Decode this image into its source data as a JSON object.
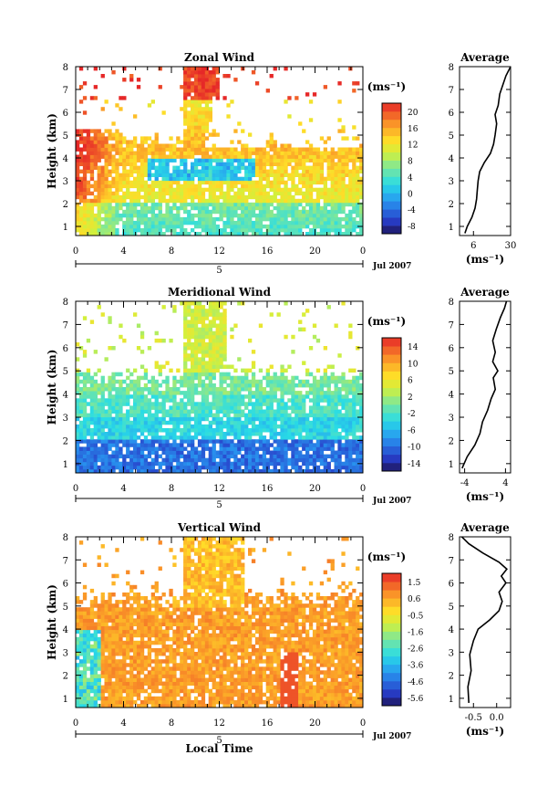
{
  "chart_data": [
    {
      "type": "heatmap",
      "title": "Zonal Wind",
      "ylabel": "Height (km)",
      "xticks": [
        "0",
        "4",
        "8",
        "12",
        "16",
        "20",
        "0"
      ],
      "date_label": "5",
      "date_suffix": "Jul 2007",
      "xlim": [
        0,
        24
      ],
      "ylim": [
        0.6,
        8
      ],
      "yticks": [
        "1",
        "2",
        "3",
        "4",
        "5",
        "6",
        "7",
        "8"
      ],
      "colorbar": {
        "unit": "(ms⁻¹)",
        "ticks": [
          "20",
          "16",
          "12",
          "8",
          "4",
          "0",
          "-4",
          "-8"
        ],
        "range": [
          -10,
          22
        ]
      },
      "average": {
        "title": "Average",
        "xlabel": "(ms⁻¹)",
        "xticks": [
          "6",
          "30"
        ],
        "xlim": [
          -3,
          30
        ],
        "profile": [
          [
            0.5,
            0.7
          ],
          [
            2,
            1.0
          ],
          [
            5,
            1.4
          ],
          [
            7,
            1.8
          ],
          [
            8,
            2.2
          ],
          [
            8.5,
            2.6
          ],
          [
            9,
            3.0
          ],
          [
            10,
            3.4
          ],
          [
            13,
            3.8
          ],
          [
            17,
            4.2
          ],
          [
            19,
            4.6
          ],
          [
            20,
            5.0
          ],
          [
            21,
            5.5
          ],
          [
            20,
            5.9
          ],
          [
            22,
            6.3
          ],
          [
            23,
            6.8
          ],
          [
            25,
            7.2
          ],
          [
            27,
            7.6
          ],
          [
            30,
            8.0
          ]
        ]
      },
      "annotation": "Local Time"
    },
    {
      "type": "heatmap",
      "title": "Meridional Wind",
      "ylabel": "Height (km)",
      "xticks": [
        "0",
        "4",
        "8",
        "12",
        "16",
        "20",
        "0"
      ],
      "date_label": "5",
      "date_suffix": "Jul 2007",
      "xlim": [
        0,
        24
      ],
      "ylim": [
        0.6,
        8
      ],
      "yticks": [
        "1",
        "2",
        "3",
        "4",
        "5",
        "6",
        "7",
        "8"
      ],
      "colorbar": {
        "unit": "(ms⁻¹)",
        "ticks": [
          "14",
          "10",
          "6",
          "2",
          "-2",
          "-6",
          "-10",
          "-14"
        ],
        "range": [
          -16,
          16
        ]
      },
      "average": {
        "title": "Average",
        "xlabel": "(ms⁻¹)",
        "xticks": [
          "-4",
          "4"
        ],
        "xlim": [
          -5,
          5
        ],
        "profile": [
          [
            -4.5,
            0.8
          ],
          [
            -3.5,
            1.3
          ],
          [
            -2,
            1.8
          ],
          [
            -1,
            2.3
          ],
          [
            -0.5,
            2.8
          ],
          [
            0.5,
            3.3
          ],
          [
            1.2,
            3.8
          ],
          [
            2,
            4.2
          ],
          [
            1.6,
            4.7
          ],
          [
            2.5,
            5.0
          ],
          [
            1.5,
            5.4
          ],
          [
            2.0,
            5.8
          ],
          [
            1.5,
            6.3
          ],
          [
            2.2,
            6.8
          ],
          [
            3.0,
            7.3
          ],
          [
            3.8,
            7.7
          ],
          [
            4.2,
            8.0
          ]
        ]
      },
      "annotation": "Local Time"
    },
    {
      "type": "heatmap",
      "title": "Vertical Wind",
      "ylabel": "Height (km)",
      "xticks": [
        "0",
        "4",
        "8",
        "12",
        "16",
        "20",
        "0"
      ],
      "date_label": "5",
      "date_suffix": "Jul 2007",
      "xlabel": "Local Time",
      "xlim": [
        0,
        24
      ],
      "ylim": [
        0.6,
        8
      ],
      "yticks": [
        "1",
        "2",
        "3",
        "4",
        "5",
        "6",
        "7",
        "8"
      ],
      "colorbar": {
        "unit": "(ms⁻¹)",
        "ticks": [
          "1.5",
          "0.6",
          "-0.5",
          "-1.6",
          "-2.6",
          "-3.6",
          "-4.6",
          "-5.6"
        ],
        "range": [
          -6,
          2
        ]
      },
      "average": {
        "title": "Average",
        "xlabel": "(ms⁻¹)",
        "xticks": [
          "-0.5",
          "0.0"
        ],
        "xlim": [
          -0.8,
          0.3
        ],
        "profile": [
          [
            -0.6,
            0.8
          ],
          [
            -0.62,
            1.5
          ],
          [
            -0.55,
            2.2
          ],
          [
            -0.58,
            2.9
          ],
          [
            -0.5,
            3.5
          ],
          [
            -0.4,
            4.0
          ],
          [
            -0.15,
            4.4
          ],
          [
            0.05,
            4.8
          ],
          [
            0.12,
            5.2
          ],
          [
            0.05,
            5.6
          ],
          [
            0.2,
            6.0
          ],
          [
            0.1,
            6.3
          ],
          [
            0.22,
            6.6
          ],
          [
            0.05,
            6.9
          ],
          [
            -0.3,
            7.3
          ],
          [
            -0.6,
            7.7
          ],
          [
            -0.75,
            8.0
          ]
        ]
      },
      "annotation": ""
    }
  ]
}
